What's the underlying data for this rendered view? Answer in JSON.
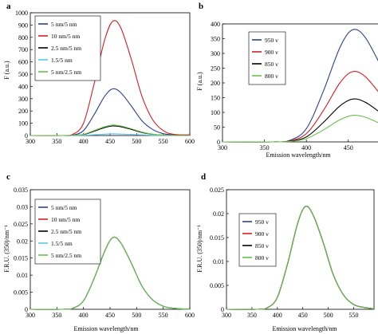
{
  "chart_data": [
    {
      "panel": "a",
      "type": "line",
      "title": "",
      "xlabel": "",
      "ylabel": "F (a.u.)",
      "xlim": [
        300,
        600
      ],
      "ylim": [
        0,
        1000
      ],
      "xticks": [
        300,
        350,
        400,
        450,
        500,
        550,
        600
      ],
      "yticks": [
        0,
        100,
        200,
        300,
        400,
        500,
        600,
        700,
        800,
        900,
        1000
      ],
      "grid": false,
      "legend_position": "top-left",
      "series": [
        {
          "name": "5 nm/5 nm",
          "color": "#2e3f8f",
          "x": [
            300,
            360,
            380,
            400,
            420,
            440,
            455,
            470,
            490,
            510,
            530,
            550,
            570,
            600
          ],
          "y": [
            0,
            0,
            3,
            40,
            170,
            320,
            380,
            350,
            240,
            120,
            50,
            15,
            5,
            0
          ]
        },
        {
          "name": "10 nm/5 nm",
          "color": "#d21f26",
          "x": [
            300,
            360,
            380,
            400,
            420,
            440,
            455,
            470,
            490,
            510,
            530,
            550,
            570,
            600
          ],
          "y": [
            0,
            0,
            10,
            100,
            420,
            780,
            930,
            880,
            620,
            320,
            130,
            40,
            10,
            5
          ]
        },
        {
          "name": "2.5 nm/5 nm",
          "color": "#000000",
          "x": [
            300,
            360,
            380,
            400,
            420,
            440,
            455,
            470,
            490,
            510,
            530,
            550,
            570,
            600
          ],
          "y": [
            0,
            0,
            1,
            8,
            35,
            65,
            78,
            72,
            50,
            25,
            10,
            3,
            1,
            0
          ]
        },
        {
          "name": "1.5/5 nm",
          "color": "#5bc8ea",
          "x": [
            300,
            360,
            380,
            400,
            420,
            440,
            455,
            470,
            490,
            510,
            530,
            550,
            570,
            600
          ],
          "y": [
            0,
            0,
            0,
            2,
            6,
            11,
            14,
            12,
            9,
            5,
            2,
            1,
            0,
            0
          ]
        },
        {
          "name": "5 nm/2.5 nm",
          "color": "#6abf4b",
          "x": [
            300,
            360,
            380,
            400,
            420,
            440,
            455,
            470,
            490,
            510,
            530,
            550,
            570,
            600
          ],
          "y": [
            0,
            0,
            1,
            10,
            40,
            72,
            85,
            78,
            55,
            28,
            11,
            3,
            1,
            0
          ]
        }
      ]
    },
    {
      "panel": "b",
      "type": "line",
      "title": "",
      "xlabel": "Emission wavelength/nm",
      "ylabel": "F (a.u.)",
      "xlim": [
        300,
        590
      ],
      "ylim": [
        0,
        400
      ],
      "xticks": [
        300,
        350,
        400,
        450,
        500,
        550
      ],
      "yticks": [
        0,
        50,
        100,
        150,
        200,
        250,
        300,
        350,
        400
      ],
      "grid": false,
      "legend_position": "top-left",
      "series": [
        {
          "name": "950 v",
          "color": "#2e3f8f",
          "x": [
            300,
            360,
            380,
            400,
            420,
            440,
            455,
            470,
            490,
            510,
            530,
            550,
            570,
            590
          ],
          "y": [
            0,
            0,
            5,
            45,
            170,
            320,
            380,
            355,
            250,
            130,
            55,
            20,
            8,
            3
          ]
        },
        {
          "name": "900 v",
          "color": "#d21f26",
          "x": [
            300,
            360,
            380,
            400,
            420,
            440,
            455,
            470,
            490,
            510,
            530,
            550,
            570,
            590
          ],
          "y": [
            0,
            0,
            3,
            28,
            105,
            200,
            238,
            222,
            155,
            80,
            34,
            12,
            5,
            2
          ]
        },
        {
          "name": "850 v",
          "color": "#000000",
          "x": [
            300,
            360,
            380,
            400,
            420,
            440,
            455,
            470,
            490,
            510,
            530,
            550,
            570,
            590
          ],
          "y": [
            0,
            0,
            2,
            17,
            65,
            122,
            145,
            135,
            95,
            49,
            21,
            7,
            3,
            1
          ]
        },
        {
          "name": "800 v",
          "color": "#6abf4b",
          "x": [
            300,
            360,
            380,
            400,
            420,
            440,
            455,
            470,
            490,
            510,
            530,
            550,
            570,
            590
          ],
          "y": [
            0,
            0,
            1,
            11,
            40,
            75,
            90,
            84,
            59,
            30,
            13,
            4,
            2,
            1
          ]
        }
      ]
    },
    {
      "panel": "c",
      "type": "line",
      "title": "",
      "xlabel": "Emission wavelength/nm",
      "ylabel": "F.R.U. (350)/nm⁻¹",
      "xlim": [
        300,
        600
      ],
      "ylim": [
        0,
        0.035
      ],
      "xticks": [
        300,
        350,
        400,
        450,
        500,
        550,
        600
      ],
      "yticks": [
        0,
        0.005,
        0.01,
        0.015,
        0.02,
        0.025,
        0.03,
        0.035
      ],
      "ytick_labels": [
        "0",
        "0.005",
        "0.01",
        "0.015",
        "0.02",
        "0.025",
        "0.03",
        "0.035"
      ],
      "grid": false,
      "legend_position": "top-left",
      "series": [
        {
          "name": "5 nm/5 nm",
          "color": "#2e3f8f",
          "x": [
            300,
            360,
            380,
            400,
            420,
            440,
            455,
            470,
            490,
            510,
            530,
            550,
            570,
            600
          ],
          "y": [
            0,
            0,
            0.0003,
            0.0025,
            0.009,
            0.017,
            0.021,
            0.0195,
            0.0135,
            0.0068,
            0.0028,
            0.0009,
            0.0003,
            0
          ]
        },
        {
          "name": "10 nm/5 nm",
          "color": "#d21f26",
          "x": [
            300,
            360,
            380,
            400,
            420,
            440,
            455,
            470,
            490,
            510,
            530,
            550,
            570,
            600
          ],
          "y": [
            0,
            0,
            0.0003,
            0.0025,
            0.009,
            0.017,
            0.021,
            0.0195,
            0.0135,
            0.0068,
            0.0028,
            0.0009,
            0.0003,
            0
          ]
        },
        {
          "name": "2.5 nm/5 nm",
          "color": "#000000",
          "x": [
            300,
            360,
            380,
            400,
            420,
            440,
            455,
            470,
            490,
            510,
            530,
            550,
            570,
            600
          ],
          "y": [
            0,
            0,
            0.0003,
            0.0025,
            0.009,
            0.017,
            0.021,
            0.0195,
            0.0135,
            0.0068,
            0.0028,
            0.0009,
            0.0003,
            0
          ]
        },
        {
          "name": "1.5/5 nm",
          "color": "#5bc8ea",
          "x": [
            300,
            360,
            380,
            400,
            420,
            440,
            455,
            470,
            490,
            510,
            530,
            550,
            570,
            600
          ],
          "y": [
            0,
            0,
            0.0003,
            0.0025,
            0.009,
            0.017,
            0.021,
            0.0195,
            0.0135,
            0.0068,
            0.0028,
            0.0009,
            0.0003,
            0
          ]
        },
        {
          "name": "5 nm/2.5 nm",
          "color": "#6abf4b",
          "x": [
            300,
            360,
            380,
            400,
            420,
            440,
            455,
            470,
            490,
            510,
            530,
            550,
            570,
            600
          ],
          "y": [
            0,
            0,
            0.0003,
            0.0025,
            0.009,
            0.017,
            0.021,
            0.0195,
            0.0135,
            0.0068,
            0.0028,
            0.0009,
            0.0003,
            0
          ]
        }
      ]
    },
    {
      "panel": "d",
      "type": "line",
      "title": "",
      "xlabel": "Emission wavelength/nm",
      "ylabel": "F.R.U. (350)/nm⁻¹",
      "xlim": [
        300,
        590
      ],
      "ylim": [
        0,
        0.025
      ],
      "xticks": [
        300,
        350,
        400,
        450,
        500,
        550
      ],
      "yticks": [
        0,
        0.005,
        0.01,
        0.015,
        0.02,
        0.025
      ],
      "ytick_labels": [
        "0",
        "0.005",
        "0.01",
        "0.015",
        "0.02",
        "0.025"
      ],
      "grid": false,
      "legend_position": "top-left",
      "series": [
        {
          "name": "950 v",
          "color": "#2e3f8f",
          "x": [
            300,
            360,
            380,
            400,
            420,
            440,
            455,
            470,
            490,
            510,
            530,
            550,
            570,
            590
          ],
          "y": [
            0,
            0,
            0.0003,
            0.0025,
            0.0095,
            0.018,
            0.0215,
            0.0198,
            0.014,
            0.0072,
            0.003,
            0.001,
            0.0004,
            0.0001
          ]
        },
        {
          "name": "900 v",
          "color": "#d21f26",
          "x": [
            300,
            360,
            380,
            400,
            420,
            440,
            455,
            470,
            490,
            510,
            530,
            550,
            570,
            590
          ],
          "y": [
            0,
            0,
            0.0003,
            0.0025,
            0.0095,
            0.018,
            0.0215,
            0.0198,
            0.014,
            0.0072,
            0.003,
            0.001,
            0.0004,
            0.0001
          ]
        },
        {
          "name": "850 v",
          "color": "#000000",
          "x": [
            300,
            360,
            380,
            400,
            420,
            440,
            455,
            470,
            490,
            510,
            530,
            550,
            570,
            590
          ],
          "y": [
            0,
            0,
            0.0003,
            0.0025,
            0.0095,
            0.018,
            0.0215,
            0.0198,
            0.014,
            0.0072,
            0.003,
            0.001,
            0.0004,
            0.0001
          ]
        },
        {
          "name": "800 v",
          "color": "#6abf4b",
          "x": [
            300,
            360,
            380,
            400,
            420,
            440,
            455,
            470,
            490,
            510,
            530,
            550,
            570,
            590
          ],
          "y": [
            0,
            0,
            0.0003,
            0.0025,
            0.0095,
            0.018,
            0.0215,
            0.0198,
            0.014,
            0.0072,
            0.003,
            0.001,
            0.0004,
            0.0001
          ]
        }
      ]
    }
  ]
}
